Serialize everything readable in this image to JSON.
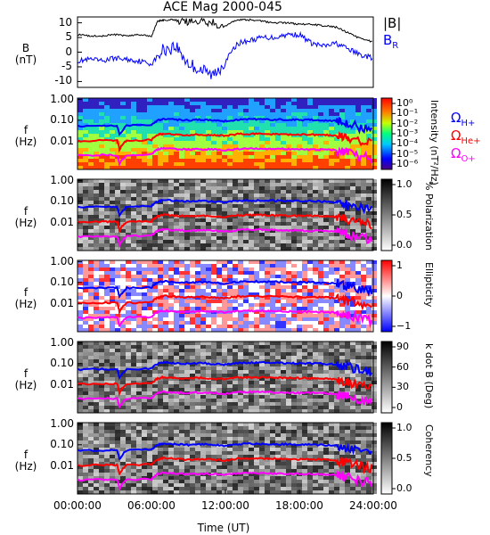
{
  "chart_data": {
    "type": "line",
    "title": "ACE Mag 2000-045",
    "xlabel": "Time (UT)",
    "x_ticks": [
      "00:00:00",
      "06:00:00",
      "12:00:00",
      "18:00:00",
      "24:00:00"
    ],
    "xlim_hours": [
      0,
      24
    ],
    "legend": [
      "|B|",
      "B_R",
      "Ω_H+",
      "Ω_He+",
      "Ω_O+"
    ],
    "colors": {
      "B": "#000000",
      "BR": "#0000ff",
      "H": "#0000ff",
      "He": "#ff0000",
      "O": "#ff00ff"
    },
    "panels": [
      {
        "id": "field",
        "ylabel": "B (nT)",
        "ylim": [
          -12,
          12
        ],
        "yticks": [
          "10",
          "5",
          "0",
          "-5",
          "-10"
        ],
        "series": [
          {
            "name": "|B|",
            "hour": [
              0,
              1,
              2,
              3,
              4,
              5,
              6,
              6.5,
              7,
              8,
              9,
              10,
              11,
              12,
              13,
              14,
              15,
              16,
              17,
              18,
              19,
              20,
              21,
              22,
              23,
              24
            ],
            "values": [
              6,
              5.5,
              5.5,
              6,
              5.5,
              6,
              5.5,
              10.5,
              11,
              11,
              10.5,
              11,
              10,
              9,
              11,
              11,
              10.5,
              10,
              10,
              9.5,
              9.5,
              9,
              8.5,
              6.5,
              4.5,
              3.5
            ]
          },
          {
            "name": "B_R",
            "hour": [
              0,
              1,
              2,
              3,
              4,
              5,
              6,
              7,
              8,
              9,
              10,
              11,
              12,
              13,
              14,
              15,
              16,
              17,
              18,
              19,
              20,
              21,
              22,
              23,
              24
            ],
            "values": [
              -3,
              -2.5,
              -3,
              -2,
              -2.5,
              -3,
              -4,
              1,
              2,
              -4,
              -6,
              -8,
              -3,
              3,
              4,
              5,
              5,
              6,
              6,
              3,
              2,
              3,
              1,
              -1,
              -2
            ]
          }
        ]
      },
      {
        "id": "intensity",
        "ylabel": "f (Hz)",
        "yticks": [
          "1.00",
          "0.10",
          "0.01"
        ],
        "colorbar": {
          "label": "Intensity (nT²/Hz)",
          "ticks": [
            "10⁰",
            "10⁻¹",
            "10⁻²",
            "10⁻³",
            "10⁻⁴",
            "10⁻⁵",
            "10⁻⁶"
          ]
        }
      },
      {
        "id": "polarization",
        "ylabel": "f (Hz)",
        "yticks": [
          "1.00",
          "0.10",
          "0.01"
        ],
        "colorbar": {
          "label": "% Polarization",
          "ticks": [
            "1.0",
            "0.5",
            "0.0"
          ]
        }
      },
      {
        "id": "ellipticity",
        "ylabel": "f (Hz)",
        "yticks": [
          "1.00",
          "0.10",
          "0.01"
        ],
        "colorbar": {
          "label": "Ellipticity",
          "ticks": [
            "1",
            "0",
            "−1"
          ]
        }
      },
      {
        "id": "kdotb",
        "ylabel": "f (Hz)",
        "yticks": [
          "1.00",
          "0.10",
          "0.01"
        ],
        "colorbar": {
          "label": "k dot B (Deg)",
          "ticks": [
            "90",
            "60",
            "30",
            "0"
          ]
        }
      },
      {
        "id": "coherency",
        "ylabel": "f (Hz)",
        "yticks": [
          "1.00",
          "0.10",
          "0.01"
        ],
        "colorbar": {
          "label": "Coherency",
          "ticks": [
            "1.0",
            "0.5",
            "0.0"
          ]
        }
      }
    ],
    "gyrofrequency_hz": {
      "hour": [
        0,
        2,
        3.2,
        3.4,
        4,
        6,
        6.5,
        7,
        8,
        9,
        10,
        11,
        12,
        13,
        14,
        15,
        16,
        17,
        18,
        19,
        20,
        21,
        21.5,
        22,
        23,
        24
      ],
      "H": [
        0.08,
        0.085,
        0.085,
        0.035,
        0.085,
        0.09,
        0.14,
        0.16,
        0.15,
        0.14,
        0.15,
        0.14,
        0.13,
        0.15,
        0.155,
        0.155,
        0.15,
        0.15,
        0.145,
        0.145,
        0.14,
        0.13,
        0.11,
        0.1,
        0.07,
        0.06
      ],
      "He": [
        0.02,
        0.021,
        0.021,
        0.009,
        0.021,
        0.022,
        0.035,
        0.04,
        0.037,
        0.035,
        0.037,
        0.035,
        0.033,
        0.038,
        0.039,
        0.039,
        0.038,
        0.037,
        0.036,
        0.036,
        0.035,
        0.033,
        0.028,
        0.025,
        0.018,
        0.015
      ],
      "O": [
        0.005,
        0.0053,
        0.0053,
        0.0023,
        0.0053,
        0.0055,
        0.009,
        0.01,
        0.0093,
        0.009,
        0.0093,
        0.009,
        0.0083,
        0.0095,
        0.0098,
        0.0098,
        0.0095,
        0.0093,
        0.009,
        0.009,
        0.0088,
        0.0083,
        0.007,
        0.0063,
        0.0045,
        0.0038
      ]
    }
  }
}
